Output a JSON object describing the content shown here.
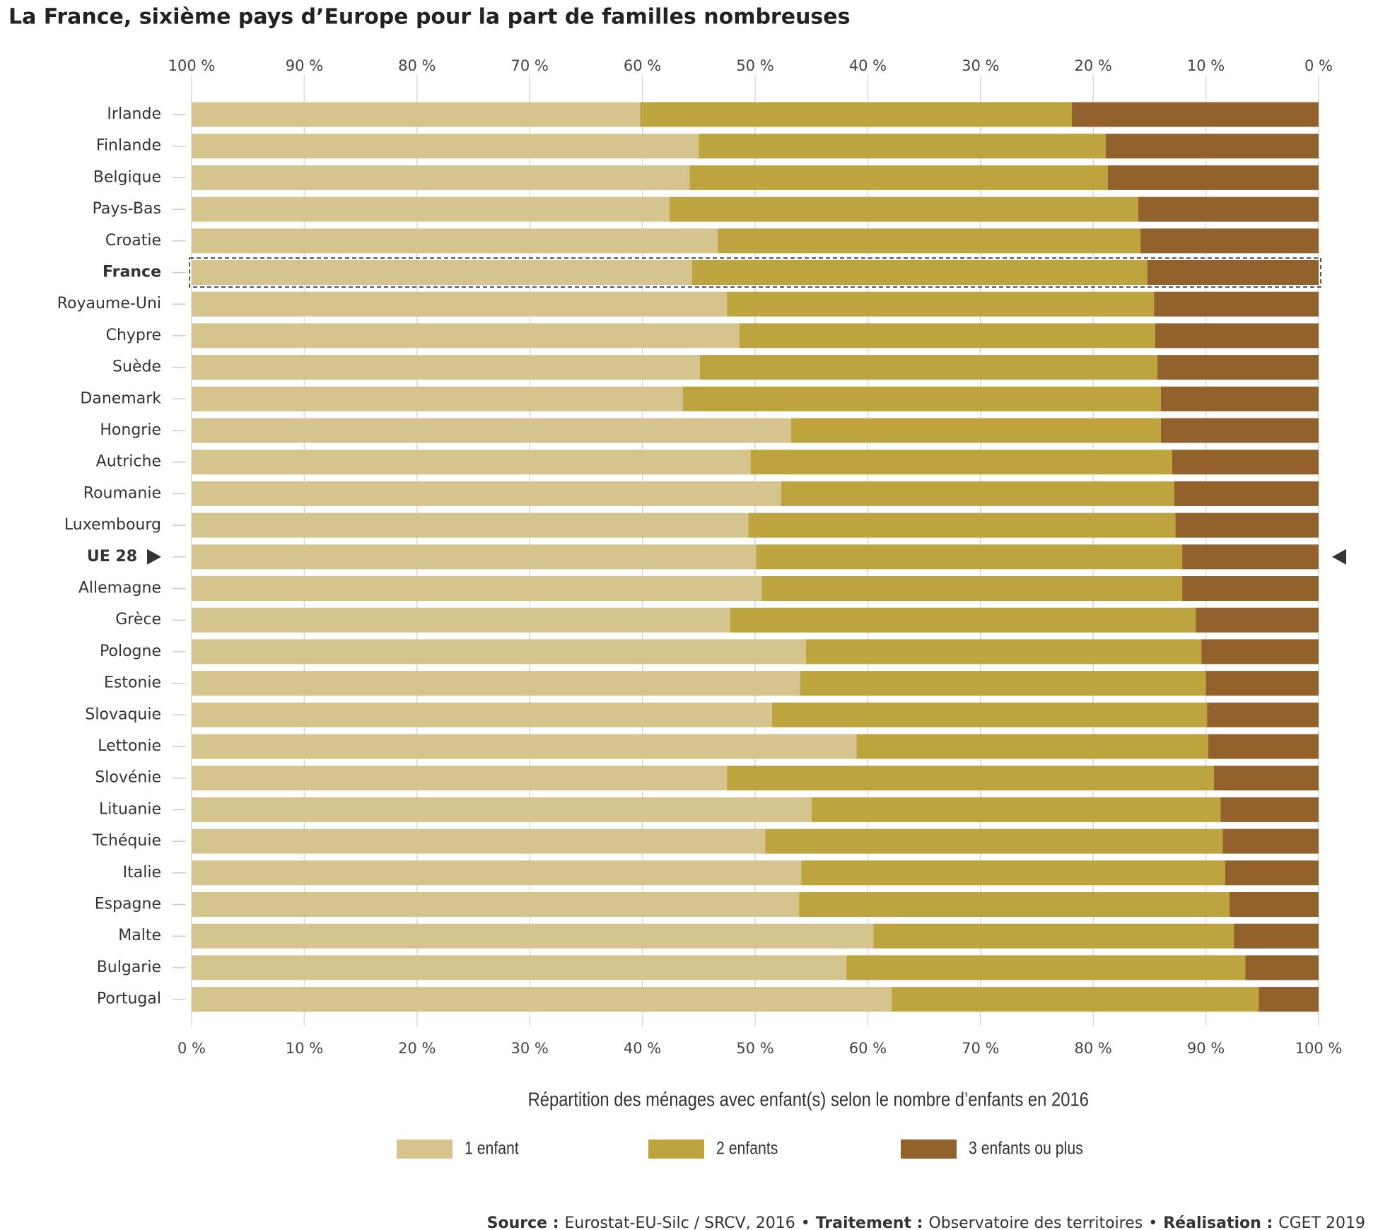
{
  "chart_data": {
    "type": "stacked-barh",
    "title": "La France, sixième pays d’Europe pour la part de familles nombreuses",
    "subtitle": "Répartition des ménages avec enfant(s) selon le nombre d’enfants en 2016",
    "categories": [
      "Irlande",
      "Finlande",
      "Belgique",
      "Pays-Bas",
      "Croatie",
      "France",
      "Royaume-Uni",
      "Chypre",
      "Suède",
      "Danemark",
      "Hongrie",
      "Autriche",
      "Roumanie",
      "Luxembourg",
      "UE 28",
      "Allemagne",
      "Grèce",
      "Pologne",
      "Estonie",
      "Slovaquie",
      "Lettonie",
      "Slovénie",
      "Lituanie",
      "Tchéquie",
      "Italie",
      "Espagne",
      "Malte",
      "Bulgarie",
      "Portugal"
    ],
    "series": [
      {
        "name": "1 enfant",
        "color": "#d5c48d",
        "values": [
          39.8,
          45.0,
          44.2,
          42.4,
          46.7,
          44.4,
          47.5,
          48.6,
          45.1,
          43.6,
          53.2,
          49.6,
          52.3,
          49.4,
          50.1,
          50.6,
          47.8,
          54.5,
          54.0,
          51.5,
          59.0,
          47.5,
          55.0,
          50.9,
          54.1,
          53.9,
          60.5,
          58.1,
          62.1
        ]
      },
      {
        "name": "2 enfants",
        "color": "#bda43e",
        "values": [
          38.3,
          36.1,
          37.1,
          41.6,
          37.5,
          40.4,
          37.9,
          36.9,
          40.6,
          42.4,
          32.8,
          37.4,
          34.9,
          37.9,
          37.8,
          37.3,
          41.3,
          35.1,
          36.0,
          38.6,
          31.2,
          43.2,
          36.3,
          40.6,
          37.6,
          38.2,
          32.0,
          35.4,
          32.6
        ]
      },
      {
        "name": "3 enfants ou plus",
        "color": "#93612b",
        "values": [
          21.9,
          18.9,
          18.7,
          16.0,
          15.8,
          15.2,
          14.6,
          14.5,
          14.3,
          14.0,
          14.0,
          13.0,
          12.8,
          12.7,
          12.1,
          12.1,
          10.9,
          10.4,
          10.0,
          9.9,
          9.8,
          9.3,
          8.7,
          8.5,
          8.3,
          7.9,
          7.5,
          6.5,
          5.3
        ]
      }
    ],
    "xlim": [
      0,
      100
    ],
    "xticks": [
      {
        "value": 0,
        "label": "0 %"
      },
      {
        "value": 10,
        "label": "10 %"
      },
      {
        "value": 20,
        "label": "20 %"
      },
      {
        "value": 30,
        "label": "30 %"
      },
      {
        "value": 40,
        "label": "40 %"
      },
      {
        "value": 50,
        "label": "50 %"
      },
      {
        "value": 60,
        "label": "60 %"
      },
      {
        "value": 70,
        "label": "70 %"
      },
      {
        "value": 80,
        "label": "80 %"
      },
      {
        "value": 90,
        "label": "90 %"
      },
      {
        "value": 100,
        "label": "100 %"
      }
    ],
    "x2lim": [
      100,
      0
    ],
    "x2ticks": [
      {
        "value": 100,
        "label": "100 %"
      },
      {
        "value": 90,
        "label": "90 %"
      },
      {
        "value": 80,
        "label": "80 %"
      },
      {
        "value": 70,
        "label": "70 %"
      },
      {
        "value": 60,
        "label": "60 %"
      },
      {
        "value": 50,
        "label": "50 %"
      },
      {
        "value": 40,
        "label": "40 %"
      },
      {
        "value": 30,
        "label": "30 %"
      },
      {
        "value": 20,
        "label": "20 %"
      },
      {
        "value": 10,
        "label": "10 %"
      },
      {
        "value": 0,
        "label": "0 %"
      }
    ],
    "grid": true,
    "legend": "bottom",
    "highlight_box": 5,
    "arrow_markers": 14,
    "source": [
      [
        "Source :",
        "Eurostat-EU-Silc / SRCV, 2016"
      ],
      [
        "Traitement :",
        "Observatoire des territoires"
      ],
      [
        "Réalisation :",
        "CGET 2019"
      ]
    ],
    "source_separator": "•"
  }
}
